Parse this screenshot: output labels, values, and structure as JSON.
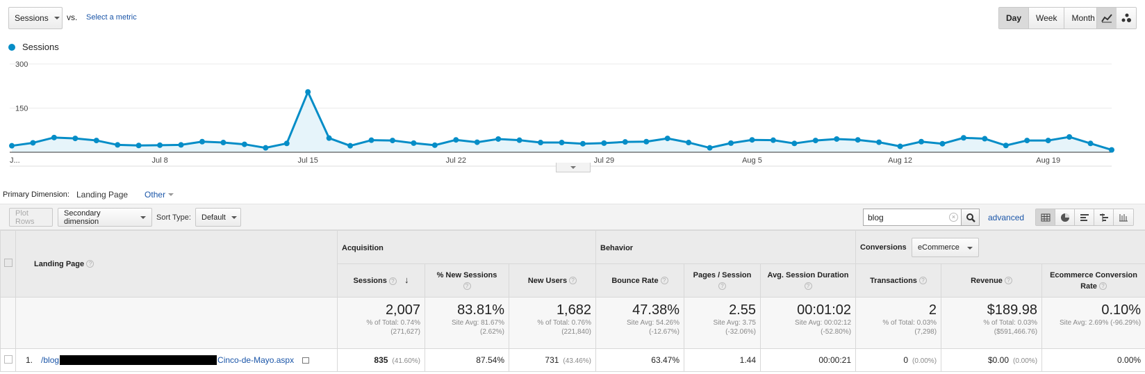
{
  "controls": {
    "metric_label": "Sessions",
    "vs_label": "vs.",
    "select_metric": "Select a metric",
    "periods": [
      "Day",
      "Week",
      "Month"
    ],
    "active_period": "Day",
    "viz_icons": [
      "line-chart-icon",
      "motion-chart-icon"
    ]
  },
  "chart_data": {
    "type": "area",
    "legend": "Sessions",
    "color": "#058dc7",
    "y_ticks": [
      "300",
      "150"
    ],
    "ylim": [
      0,
      300
    ],
    "x_tick_labels": [
      "J...",
      "Jul 8",
      "Jul 15",
      "Jul 22",
      "Jul 29",
      "Aug 5",
      "Aug 12",
      "Aug 19"
    ],
    "x_tick_index": [
      0,
      7,
      14,
      21,
      28,
      35,
      42,
      49
    ],
    "values": [
      22,
      32,
      50,
      47,
      40,
      25,
      23,
      24,
      25,
      36,
      33,
      27,
      15,
      30,
      205,
      48,
      22,
      41,
      40,
      31,
      24,
      42,
      34,
      45,
      41,
      33,
      33,
      29,
      31,
      35,
      36,
      47,
      33,
      15,
      31,
      42,
      41,
      30,
      40,
      45,
      42,
      34,
      20,
      36,
      29,
      49,
      46,
      23,
      40,
      40,
      52,
      30,
      8
    ]
  },
  "primary_dimension": {
    "label": "Primary Dimension:",
    "value": "Landing Page",
    "other": "Other"
  },
  "toolbar": {
    "plot_rows": "Plot Rows",
    "secondary_dimension": "Secondary dimension",
    "sort_type_label": "Sort Type:",
    "sort_type_value": "Default",
    "search_value": "blog",
    "advanced": "advanced",
    "view_icons": [
      "data-table-icon",
      "pie-chart-icon",
      "performance-icon",
      "comparison-icon",
      "term-cloud-icon"
    ]
  },
  "table": {
    "groups": {
      "acquisition": "Acquisition",
      "behavior": "Behavior",
      "conversions": "Conversions",
      "conversions_select": "eCommerce"
    },
    "landing_page_header": "Landing Page",
    "columns": [
      "Sessions",
      "% New Sessions",
      "New Users",
      "Bounce Rate",
      "Pages / Session",
      "Avg. Session Duration",
      "Transactions",
      "Revenue",
      "Ecommerce Conversion Rate"
    ],
    "totals": [
      {
        "value": "2,007",
        "line1": "% of Total: 0.74%",
        "line2": "(271,627)"
      },
      {
        "value": "83.81%",
        "line1": "Site Avg: 81.67%",
        "line2": "(2.62%)"
      },
      {
        "value": "1,682",
        "line1": "% of Total: 0.76%",
        "line2": "(221,840)"
      },
      {
        "value": "47.38%",
        "line1": "Site Avg: 54.26%",
        "line2": "(-12.67%)"
      },
      {
        "value": "2.55",
        "line1": "Site Avg: 3.75",
        "line2": "(-32.06%)"
      },
      {
        "value": "00:01:02",
        "line1": "Site Avg: 00:02:12",
        "line2": "(-52.80%)"
      },
      {
        "value": "2",
        "line1": "% of Total: 0.03%",
        "line2": "(7,298)"
      },
      {
        "value": "$189.98",
        "line1": "% of Total: 0.03%",
        "line2": "($591,466.76)"
      },
      {
        "value": "0.10%",
        "line1": "Site Avg: 2.69% (-96.29%)",
        "line2": ""
      }
    ],
    "row1": {
      "num": "1.",
      "path_start": "/blog",
      "path_end": "Cinco-de-Mayo.aspx",
      "sessions": "835",
      "sessions_pct": "(41.60%)",
      "new_sessions": "87.54%",
      "new_users": "731",
      "new_users_pct": "(43.46%)",
      "bounce_rate": "63.47%",
      "pages_session": "1.44",
      "duration": "00:00:21",
      "transactions": "0",
      "transactions_pct": "(0.00%)",
      "revenue": "$0.00",
      "revenue_pct": "(0.00%)",
      "conv_rate": "0.00%"
    }
  }
}
